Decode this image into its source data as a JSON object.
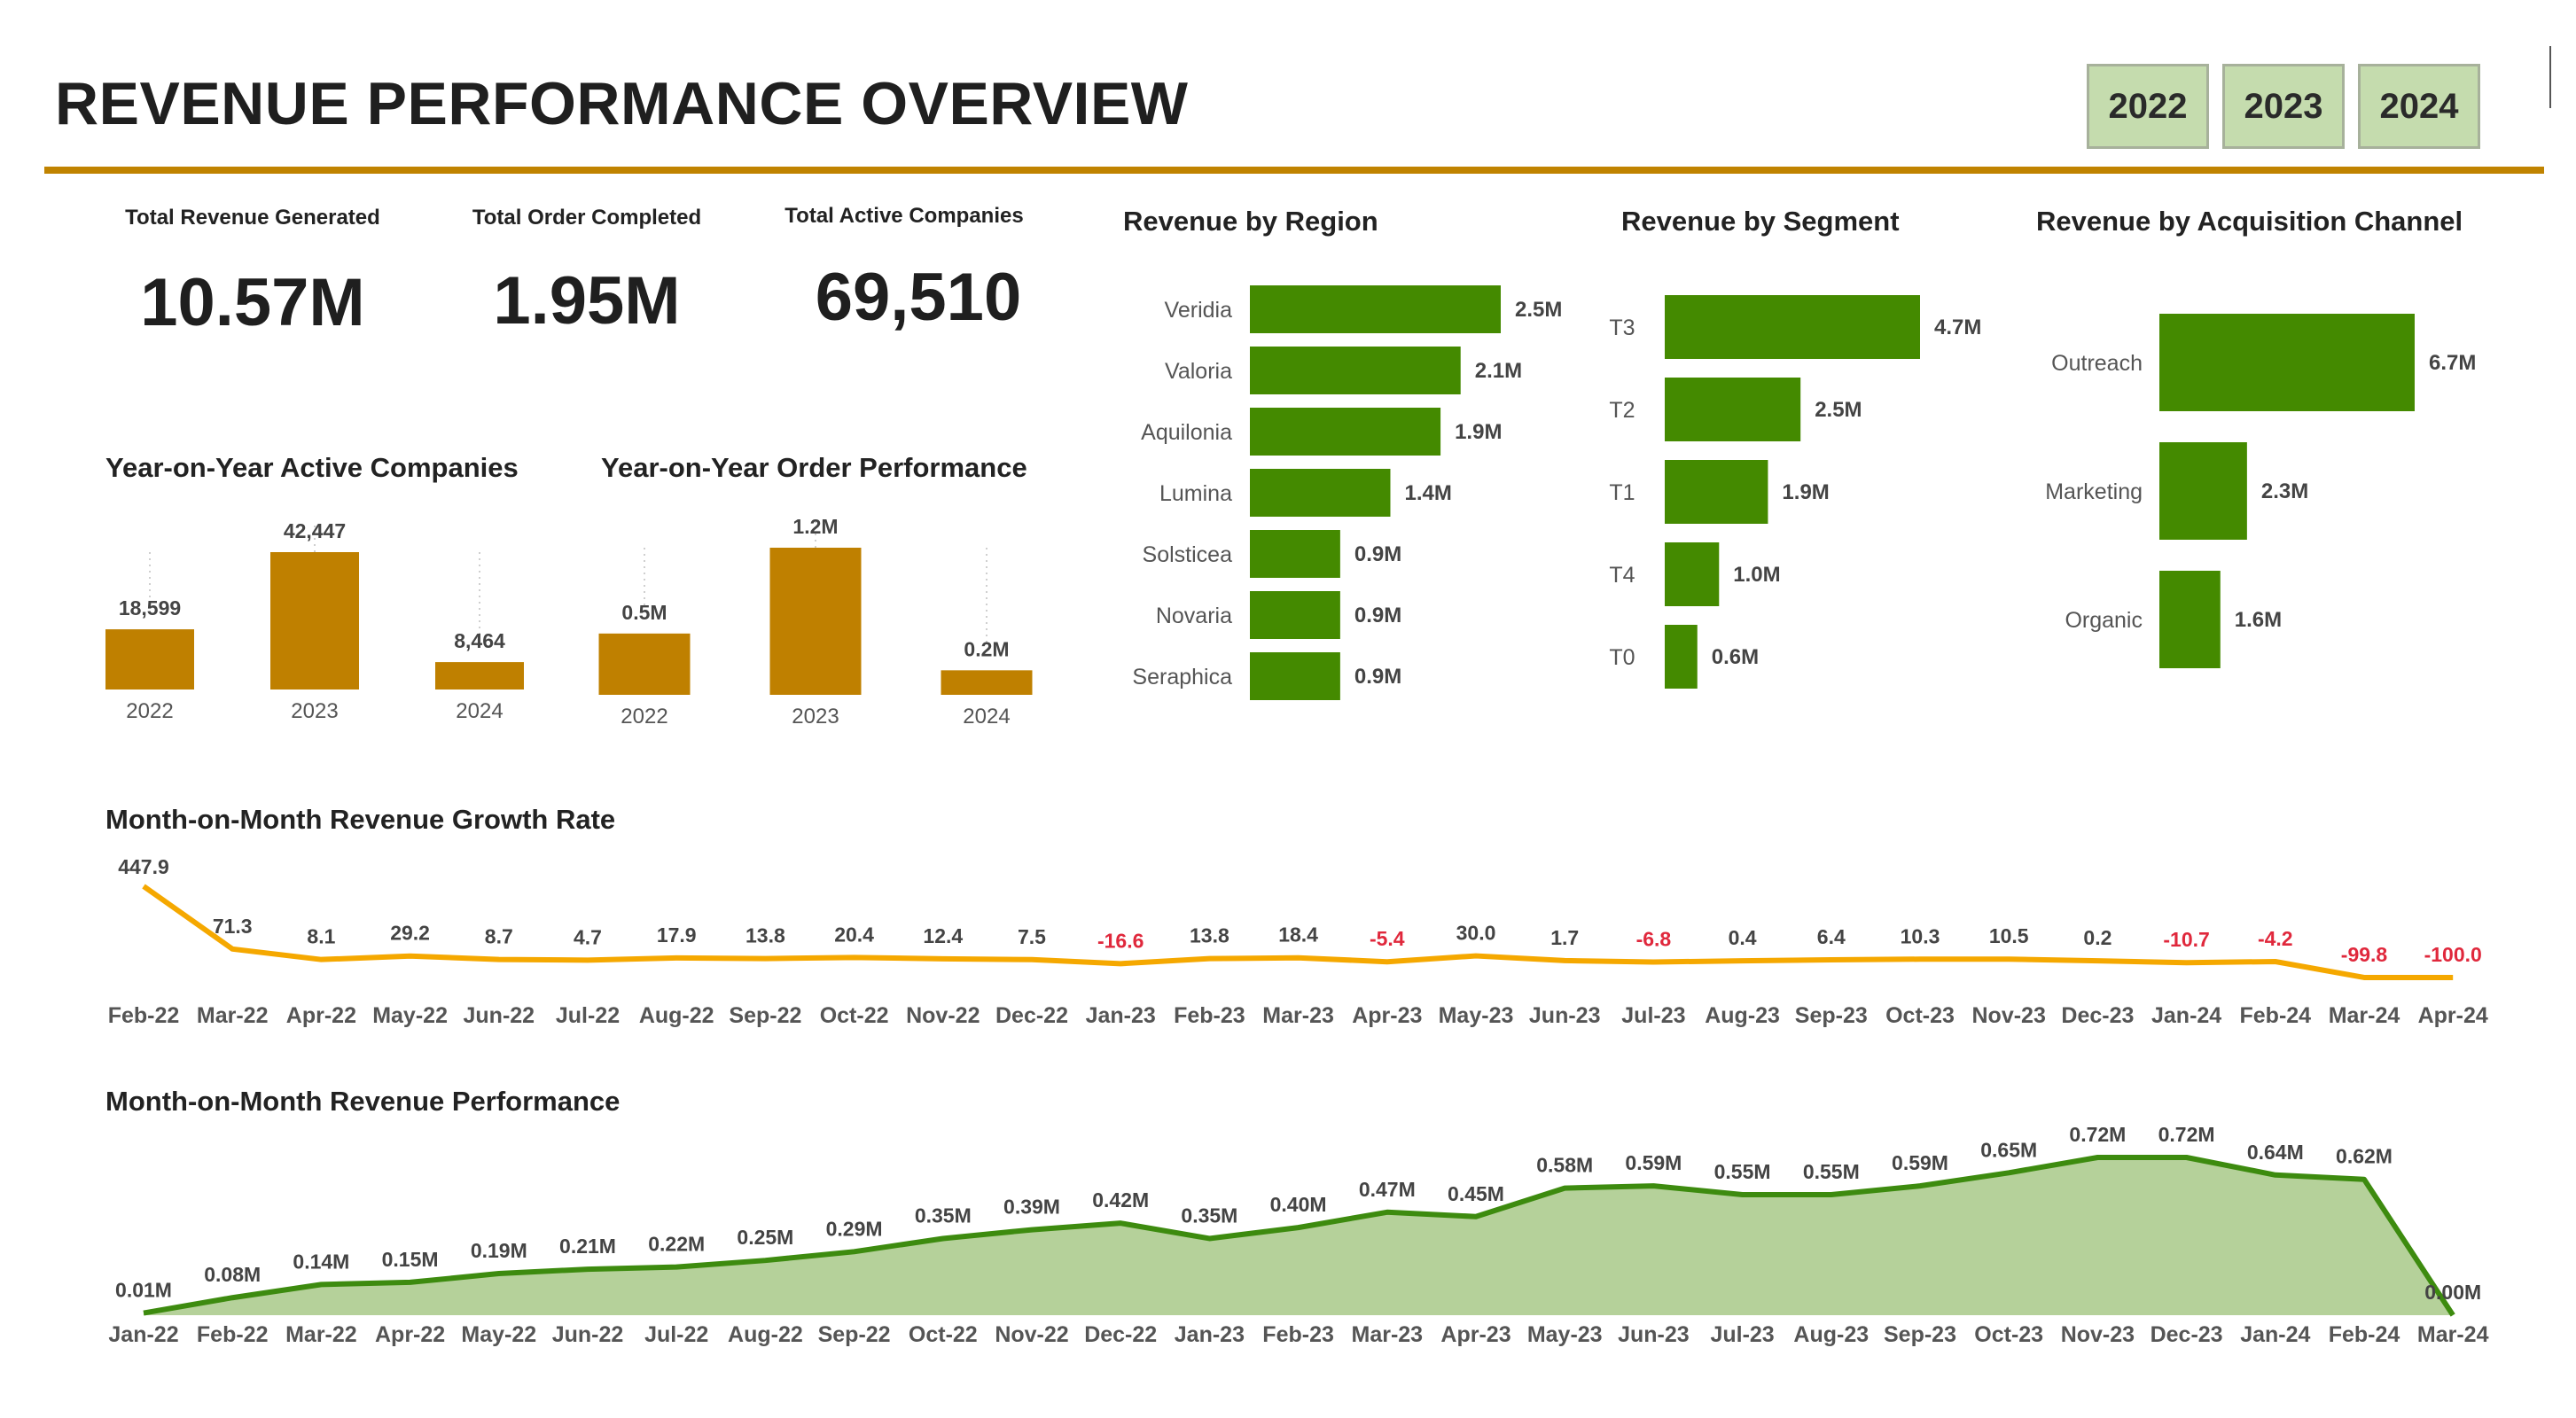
{
  "header": {
    "title": "REVENUE PERFORMANCE OVERVIEW",
    "year_buttons": [
      "2022",
      "2023",
      "2024"
    ]
  },
  "kpis": [
    {
      "label": "Total Revenue Generated",
      "value": "10.57M"
    },
    {
      "label": "Total Order Completed",
      "value": "1.95M"
    },
    {
      "label": "Total Active Companies",
      "value": "69,510"
    }
  ],
  "colors": {
    "accent": "#c08300",
    "bar_gold": "#bf8000",
    "bar_green": "#448a00",
    "line_yellow": "#f5a800",
    "area_fill": "#b5d19a",
    "area_line": "#3d8b0f",
    "negative": "#e0283c",
    "button_bg": "#c5dcae"
  },
  "chart_data": [
    {
      "id": "yoy-companies",
      "type": "bar",
      "title": "Year-on-Year Active Companies",
      "categories": [
        "2022",
        "2023",
        "2024"
      ],
      "values": [
        18599,
        42447,
        8464
      ],
      "value_labels": [
        "18,599",
        "42,447",
        "8,464"
      ]
    },
    {
      "id": "yoy-orders",
      "type": "bar",
      "title": "Year-on-Year Order Performance",
      "categories": [
        "2022",
        "2023",
        "2024"
      ],
      "values": [
        0.5,
        1.2,
        0.2
      ],
      "value_labels": [
        "0.5M",
        "1.2M",
        "0.2M"
      ]
    },
    {
      "id": "region",
      "type": "bar",
      "orientation": "horizontal",
      "title": "Revenue by Region",
      "categories": [
        "Veridia",
        "Valoria",
        "Aquilonia",
        "Lumina",
        "Solsticea",
        "Novaria",
        "Seraphica"
      ],
      "values": [
        2.5,
        2.1,
        1.9,
        1.4,
        0.9,
        0.9,
        0.9
      ],
      "value_labels": [
        "2.5M",
        "2.1M",
        "1.9M",
        "1.4M",
        "0.9M",
        "0.9M",
        "0.9M"
      ]
    },
    {
      "id": "segment",
      "type": "bar",
      "orientation": "horizontal",
      "title": "Revenue by Segment",
      "categories": [
        "T3",
        "T2",
        "T1",
        "T4",
        "T0"
      ],
      "values": [
        4.7,
        2.5,
        1.9,
        1.0,
        0.6
      ],
      "value_labels": [
        "4.7M",
        "2.5M",
        "1.9M",
        "1.0M",
        "0.6M"
      ]
    },
    {
      "id": "channel",
      "type": "bar",
      "orientation": "horizontal",
      "title": "Revenue by Acquisition Channel",
      "categories": [
        "Outreach",
        "Marketing",
        "Organic"
      ],
      "values": [
        6.7,
        2.3,
        1.6
      ],
      "value_labels": [
        "6.7M",
        "2.3M",
        "1.6M"
      ]
    },
    {
      "id": "growth",
      "type": "line",
      "title": "Month-on-Month Revenue Growth Rate",
      "categories": [
        "Feb-22",
        "Mar-22",
        "Apr-22",
        "May-22",
        "Jun-22",
        "Jul-22",
        "Aug-22",
        "Sep-22",
        "Oct-22",
        "Nov-22",
        "Dec-22",
        "Jan-23",
        "Feb-23",
        "Mar-23",
        "Apr-23",
        "May-23",
        "Jun-23",
        "Jul-23",
        "Aug-23",
        "Sep-23",
        "Oct-23",
        "Nov-23",
        "Dec-23",
        "Jan-24",
        "Feb-24",
        "Mar-24",
        "Apr-24"
      ],
      "values": [
        447.9,
        71.3,
        8.1,
        29.2,
        8.7,
        4.7,
        17.9,
        13.8,
        20.4,
        12.4,
        7.5,
        -16.6,
        13.8,
        18.4,
        -5.4,
        30.0,
        1.7,
        -6.8,
        0.4,
        6.4,
        10.3,
        10.5,
        0.2,
        -10.7,
        -4.2,
        -99.8,
        -100.0
      ],
      "value_labels": [
        "447.9",
        "71.3",
        "8.1",
        "29.2",
        "8.7",
        "4.7",
        "17.9",
        "13.8",
        "20.4",
        "12.4",
        "7.5",
        "-16.6",
        "13.8",
        "18.4",
        "-5.4",
        "30.0",
        "1.7",
        "-6.8",
        "0.4",
        "6.4",
        "10.3",
        "10.5",
        "0.2",
        "-10.7",
        "-4.2",
        "-99.8",
        "-100.0"
      ]
    },
    {
      "id": "performance",
      "type": "area",
      "title": "Month-on-Month Revenue Performance",
      "categories": [
        "Jan-22",
        "Feb-22",
        "Mar-22",
        "Apr-22",
        "May-22",
        "Jun-22",
        "Jul-22",
        "Aug-22",
        "Sep-22",
        "Oct-22",
        "Nov-22",
        "Dec-22",
        "Jan-23",
        "Feb-23",
        "Mar-23",
        "Apr-23",
        "May-23",
        "Jun-23",
        "Jul-23",
        "Aug-23",
        "Sep-23",
        "Oct-23",
        "Nov-23",
        "Dec-23",
        "Jan-24",
        "Feb-24",
        "Mar-24"
      ],
      "values": [
        0.01,
        0.08,
        0.14,
        0.15,
        0.19,
        0.21,
        0.22,
        0.25,
        0.29,
        0.35,
        0.39,
        0.42,
        0.35,
        0.4,
        0.47,
        0.45,
        0.58,
        0.59,
        0.55,
        0.55,
        0.59,
        0.65,
        0.72,
        0.72,
        0.64,
        0.62,
        0.0
      ],
      "value_labels": [
        "0.01M",
        "0.08M",
        "0.14M",
        "0.15M",
        "0.19M",
        "0.21M",
        "0.22M",
        "0.25M",
        "0.29M",
        "0.35M",
        "0.39M",
        "0.42M",
        "0.35M",
        "0.40M",
        "0.47M",
        "0.45M",
        "0.58M",
        "0.59M",
        "0.55M",
        "0.55M",
        "0.59M",
        "0.65M",
        "0.72M",
        "0.72M",
        "0.64M",
        "0.62M",
        "0.00M"
      ]
    }
  ]
}
